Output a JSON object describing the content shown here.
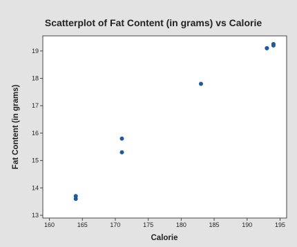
{
  "chart_data": {
    "type": "scatter",
    "title": "Scatterplot of Fat Content (in grams) vs Calorie",
    "xlabel": "Calorie",
    "ylabel": "Fat Content (in grams)",
    "xlim": [
      159,
      196
    ],
    "ylim": [
      12.9,
      19.55
    ],
    "xticks": [
      "160",
      "165",
      "170",
      "175",
      "180",
      "185",
      "190",
      "195"
    ],
    "yticks": [
      "13",
      "14",
      "15",
      "16",
      "17",
      "18",
      "19"
    ],
    "grid": false,
    "x": [
      164,
      164,
      171,
      171,
      183,
      193,
      193,
      194,
      194
    ],
    "y": [
      13.6,
      13.7,
      15.3,
      15.8,
      17.8,
      19.1,
      19.1,
      19.2,
      19.25
    ],
    "colors": {
      "point": "#1f5a9a",
      "plot_bg": "#ffffff",
      "page_bg": "#e3e3e3"
    }
  }
}
